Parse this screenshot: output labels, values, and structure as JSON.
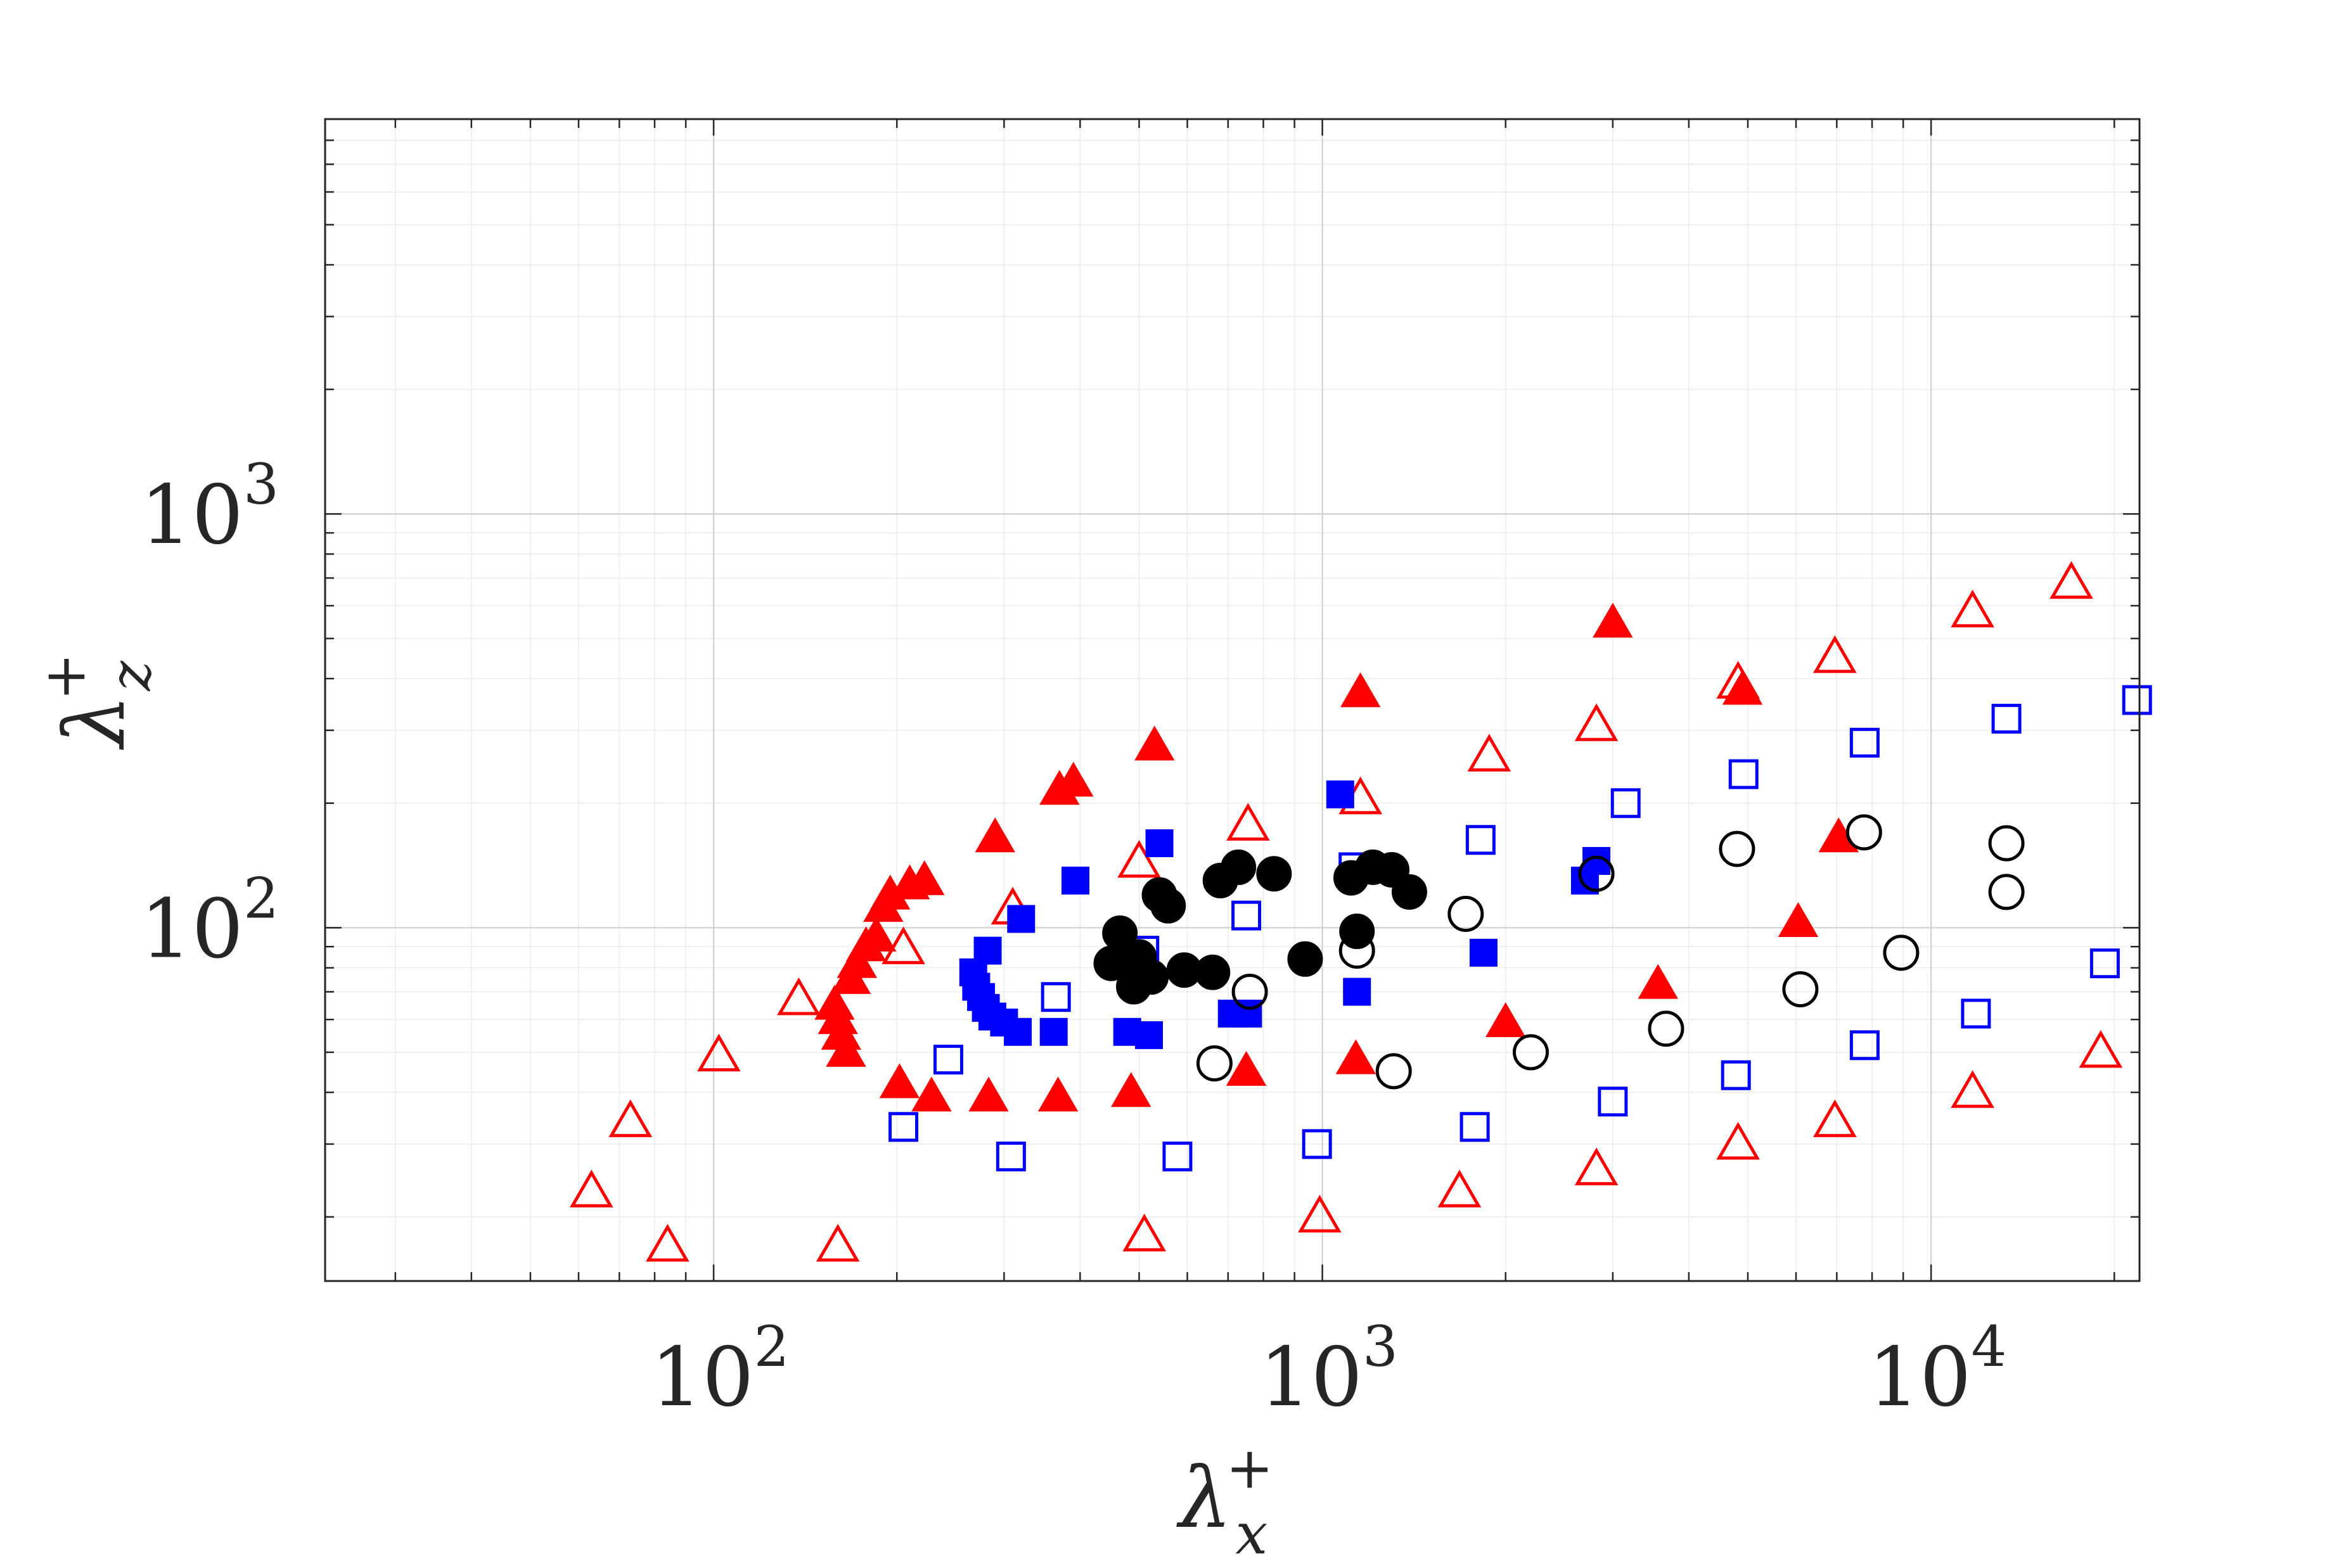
{
  "chart_data": {
    "type": "scatter",
    "xscale": "log",
    "yscale": "log",
    "xlim": [
      23,
      22000
    ],
    "ylim": [
      14,
      9000
    ],
    "grid": true,
    "xlabel": {
      "base": "λ",
      "sup": "+",
      "sub": "x"
    },
    "ylabel": {
      "base": "λ",
      "sup": "+",
      "sub": "z"
    },
    "xticks": [
      {
        "value": 100,
        "base": "10",
        "exp": "2"
      },
      {
        "value": 1000,
        "base": "10",
        "exp": "3"
      },
      {
        "value": 10000,
        "base": "10",
        "exp": "4"
      }
    ],
    "yticks": [
      {
        "value": 100,
        "base": "10",
        "exp": "2"
      },
      {
        "value": 1000,
        "base": "10",
        "exp": "3"
      }
    ],
    "series": [
      {
        "marker": "triangle-open",
        "color": "#ff0000",
        "points": [
          [
            63,
            23
          ],
          [
            73,
            34
          ],
          [
            84,
            17
          ],
          [
            102,
            49
          ],
          [
            138,
            67
          ],
          [
            160,
            17
          ],
          [
            205,
            89
          ],
          [
            310,
            111
          ],
          [
            500,
            144
          ],
          [
            510,
            18
          ],
          [
            755,
            177
          ],
          [
            990,
            20
          ],
          [
            1155,
            205
          ],
          [
            1680,
            23
          ],
          [
            1880,
            260
          ],
          [
            2820,
            26
          ],
          [
            2820,
            308
          ],
          [
            4820,
            30
          ],
          [
            4820,
            390
          ],
          [
            6950,
            34
          ],
          [
            6950,
            450
          ],
          [
            11700,
            40
          ],
          [
            11700,
            580
          ],
          [
            17000,
            680
          ],
          [
            19000,
            50
          ]
        ]
      },
      {
        "marker": "triangle-filled",
        "color": "#ff0000",
        "points": [
          [
            158,
            65
          ],
          [
            160,
            60
          ],
          [
            162,
            55
          ],
          [
            165,
            50
          ],
          [
            168,
            75
          ],
          [
            172,
            82
          ],
          [
            178,
            90
          ],
          [
            185,
            95
          ],
          [
            190,
            112
          ],
          [
            195,
            120
          ],
          [
            202,
            42
          ],
          [
            210,
            127
          ],
          [
            222,
            130
          ],
          [
            228,
            39
          ],
          [
            283,
            39
          ],
          [
            290,
            165
          ],
          [
            368,
            39
          ],
          [
            370,
            215
          ],
          [
            390,
            225
          ],
          [
            485,
            40
          ],
          [
            530,
            275
          ],
          [
            750,
            45
          ],
          [
            1135,
            48
          ],
          [
            1155,
            370
          ],
          [
            2000,
            59
          ],
          [
            3000,
            545
          ],
          [
            3560,
            73
          ],
          [
            4900,
            375
          ],
          [
            6050,
            103
          ],
          [
            7050,
            165
          ]
        ]
      },
      {
        "marker": "square-open",
        "color": "#0000ff",
        "points": [
          [
            205,
            33
          ],
          [
            243,
            48
          ],
          [
            308,
            28
          ],
          [
            365,
            68
          ],
          [
            510,
            88
          ],
          [
            578,
            28
          ],
          [
            750,
            107
          ],
          [
            980,
            30
          ],
          [
            1125,
            140
          ],
          [
            1780,
            33
          ],
          [
            1820,
            163
          ],
          [
            3000,
            38
          ],
          [
            3150,
            200
          ],
          [
            4780,
            44
          ],
          [
            4920,
            235
          ],
          [
            7780,
            52
          ],
          [
            7780,
            280
          ],
          [
            11850,
            62
          ],
          [
            13300,
            320
          ],
          [
            19300,
            82
          ],
          [
            21800,
            355
          ]
        ]
      },
      {
        "marker": "square-filled",
        "color": "#0000ff",
        "points": [
          [
            267,
            78
          ],
          [
            270,
            72
          ],
          [
            275,
            68
          ],
          [
            280,
            64
          ],
          [
            282,
            88
          ],
          [
            287,
            61
          ],
          [
            300,
            59
          ],
          [
            316,
            56
          ],
          [
            320,
            105
          ],
          [
            362,
            56
          ],
          [
            393,
            130
          ],
          [
            478,
            56
          ],
          [
            519,
            55
          ],
          [
            540,
            160
          ],
          [
            710,
            62
          ],
          [
            755,
            62
          ],
          [
            1070,
            210
          ],
          [
            1140,
            70
          ],
          [
            1840,
            87
          ],
          [
            2700,
            130
          ],
          [
            2820,
            145
          ]
        ]
      },
      {
        "marker": "circle-open",
        "color": "#000000",
        "points": [
          [
            665,
            47
          ],
          [
            760,
            70
          ],
          [
            1140,
            88
          ],
          [
            1310,
            45
          ],
          [
            1720,
            108
          ],
          [
            2200,
            50
          ],
          [
            2820,
            135
          ],
          [
            3670,
            57
          ],
          [
            4800,
            155
          ],
          [
            6100,
            71
          ],
          [
            7760,
            170
          ],
          [
            8930,
            87
          ],
          [
            13300,
            122
          ],
          [
            13300,
            160
          ]
        ]
      },
      {
        "marker": "circle-filled",
        "color": "#000000",
        "points": [
          [
            450,
            82
          ],
          [
            465,
            97
          ],
          [
            490,
            72
          ],
          [
            500,
            85
          ],
          [
            523,
            76
          ],
          [
            540,
            120
          ],
          [
            558,
            113
          ],
          [
            593,
            79
          ],
          [
            660,
            78
          ],
          [
            680,
            130
          ],
          [
            728,
            140
          ],
          [
            833,
            135
          ],
          [
            937,
            84
          ],
          [
            1115,
            132
          ],
          [
            1140,
            98
          ],
          [
            1210,
            140
          ],
          [
            1300,
            138
          ],
          [
            1390,
            122
          ]
        ]
      }
    ]
  }
}
